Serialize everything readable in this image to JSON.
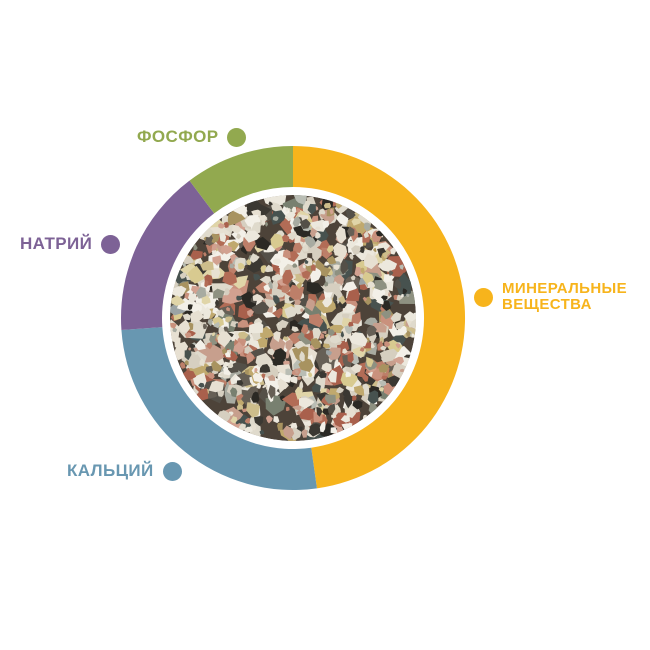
{
  "page": {
    "background_color": "#ffffff"
  },
  "chart_data": {
    "type": "pie",
    "subtype": "donut",
    "direction": "clockwise",
    "start_at": "top",
    "legend_position": "around",
    "center_content": "circular photo of mixed mineral gravel (white, pink, dark and tan stones)",
    "segments": [
      {
        "id": "mineral-substances",
        "label": "МИНЕРАЛЬНЫЕ ВЕЩЕСТВА",
        "label_lines": [
          "МИНЕРАЛЬНЫЕ",
          "ВЕЩЕСТВА"
        ],
        "angle_deg": 172,
        "share_pct": 47.8,
        "color": "#F7B41C"
      },
      {
        "id": "calcium",
        "label": "КАЛЬЦИЙ",
        "label_lines": [
          "КАЛЬЦИЙ"
        ],
        "angle_deg": 94,
        "share_pct": 26.1,
        "color": "#6897B1"
      },
      {
        "id": "sodium",
        "label": "НАТРИЙ",
        "label_lines": [
          "НАТРИЙ"
        ],
        "angle_deg": 57,
        "share_pct": 15.8,
        "color": "#7D6296"
      },
      {
        "id": "phosphorus",
        "label": "ФОСФОР",
        "label_lines": [
          "ФОСФОР"
        ],
        "angle_deg": 37,
        "share_pct": 10.3,
        "color": "#92A94F"
      }
    ]
  }
}
